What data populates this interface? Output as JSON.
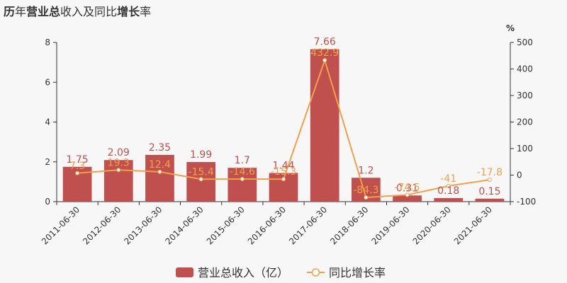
{
  "chart_data": {
    "type": "bar",
    "title": {
      "segments": [
        {
          "text": "历",
          "bold": true
        },
        {
          "text": "年",
          "bold": false
        },
        {
          "text": "营业总",
          "bold": true
        },
        {
          "text": "收入及同比",
          "bold": false
        },
        {
          "text": "增长",
          "bold": true
        },
        {
          "text": "率",
          "bold": false
        }
      ]
    },
    "categories": [
      "2011-06-30",
      "2012-06-30",
      "2013-06-30",
      "2014-06-30",
      "2015-06-30",
      "2016-06-30",
      "2017-06-30",
      "2018-06-30",
      "2019-06-30",
      "2020-06-30",
      "2021-06-30"
    ],
    "y_left": {
      "min": 0,
      "max": 8,
      "ticks": [
        "0",
        "2",
        "4",
        "6",
        "8"
      ]
    },
    "y_right": {
      "label": "%",
      "min": -100,
      "max": 500,
      "ticks": [
        "-100",
        "0",
        "100",
        "200",
        "300",
        "400",
        "500"
      ]
    },
    "series": [
      {
        "name": "营业总收入（亿）",
        "type": "bar",
        "axis": "left",
        "color": "#c0504d",
        "values": [
          1.75,
          2.09,
          2.35,
          1.99,
          1.7,
          1.44,
          7.66,
          1.2,
          0.31,
          0.18,
          0.15
        ],
        "labels": [
          "1.75",
          "2.09",
          "2.35",
          "1.99",
          "1.7",
          "1.44",
          "7.66",
          "1.2",
          "0.31",
          "0.18",
          "0.15"
        ]
      },
      {
        "name": "同比增长率",
        "type": "line",
        "axis": "right",
        "color": "#f0a04b",
        "values": [
          7.3,
          19.3,
          12.4,
          -15.4,
          -14.6,
          -15.3,
          432.9,
          -84.3,
          -74.5,
          -41,
          -17.8
        ],
        "labels": [
          "7.3",
          "19.3",
          "12.4",
          "-15.4",
          "-14.6",
          "-15.3",
          "432.9",
          "-84.3",
          "-74.5",
          "-41",
          "-17.8"
        ]
      }
    ],
    "legend": {
      "position": "bottom"
    },
    "grid": false
  }
}
